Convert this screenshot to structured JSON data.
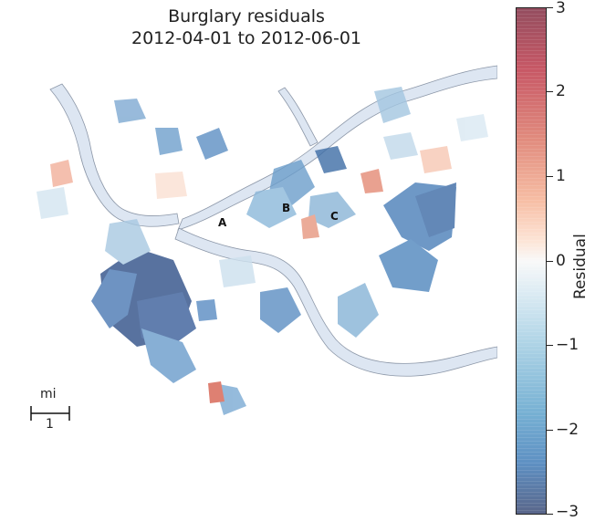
{
  "title_line1": "Burglary residuals",
  "title_line2": "2012-04-01 to 2012-06-01",
  "colorbar": {
    "label": "Residual",
    "ticks": [
      "3",
      "2",
      "1",
      "0",
      "−1",
      "−2",
      "−3"
    ],
    "min": -3,
    "max": 3,
    "colormap": "RdBu_r"
  },
  "places": [
    "A",
    "B",
    "C"
  ],
  "scale_bar": {
    "unit": "mi",
    "value": "1"
  },
  "colors": {
    "river": "#dde6f2",
    "river_edge": "#8c97a8",
    "high": "#b2182b",
    "low": "#2166ac",
    "neutral": "#f7f7f7"
  }
}
